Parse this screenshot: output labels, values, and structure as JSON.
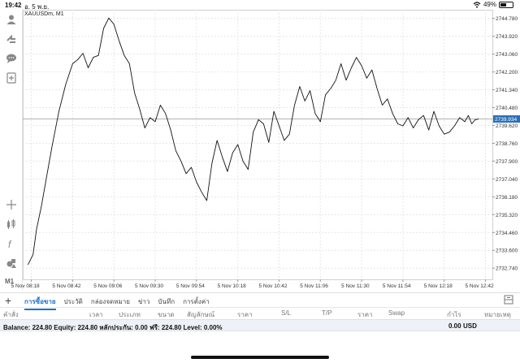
{
  "status_bar": {
    "time": "19:42",
    "date": "อ. 5 พ.ย.",
    "battery": "49%",
    "battery_level": 0.49
  },
  "chart": {
    "symbol_title": "XAUUSDm, M1",
    "timeframe": "M1",
    "current_price_label": "2739.934",
    "colors": {
      "line": "#111111",
      "grid": "#e6e6e6",
      "price_tag": "#2d6fb6"
    }
  },
  "sidebar": {
    "icons": [
      "account-icon",
      "trade-arrows-icon",
      "chat-icon",
      "new-order-icon",
      "crosshair-icon",
      "indicators-icon",
      "function-icon",
      "objects-icon"
    ]
  },
  "bottom_tabs": {
    "plus": "+",
    "items": [
      {
        "label": "การซื้อขาย",
        "active": true
      },
      {
        "label": "ประวัติ",
        "active": false
      },
      {
        "label": "กล่องจดหมาย",
        "active": false
      },
      {
        "label": "ข่าว",
        "active": false
      },
      {
        "label": "บันทึก",
        "active": false
      },
      {
        "label": "การตั้งค่า",
        "active": false
      }
    ]
  },
  "columns": [
    "คำสั่ง",
    "เวลา",
    "ประเภท",
    "ขนาด",
    "สัญลักษณ์",
    "ราคา",
    "S/L",
    "T/P",
    "ราคา",
    "Swap",
    "กำไร",
    "หมายเหตุ"
  ],
  "balance": {
    "text": "Balance: 224.80 Equity: 224.80 หลักประกัน: 0.00 ฟรี: 224.80 Level: 0.00%",
    "profit": "0.00",
    "currency": "USD"
  },
  "chart_data": {
    "type": "line",
    "title": "XAUUSDm, M1",
    "ylim": [
      2732.2,
      2745.2
    ],
    "y_ticks": [
      2744.78,
      2743.92,
      2743.06,
      2742.2,
      2741.34,
      2740.48,
      2739.62,
      2738.76,
      2737.9,
      2737.04,
      2736.18,
      2735.32,
      2734.46,
      2733.6,
      2732.74
    ],
    "y_tick_labels": [
      "2744.780",
      "2743.920",
      "2743.060",
      "2742.200",
      "2741.340",
      "2740.480",
      "2739.620",
      "2738.760",
      "2737.900",
      "2737.040",
      "2736.180",
      "2735.320",
      "2734.460",
      "2733.600",
      "2732.740"
    ],
    "x_ticks": [
      0,
      24,
      48,
      72,
      96,
      120,
      144,
      168,
      192,
      216,
      240,
      264
    ],
    "x_tick_labels": [
      "5 Nov 08:18",
      "5 Nov 08:42",
      "5 Nov 09:06",
      "5 Nov 09:30",
      "5 Nov 09:54",
      "5 Nov 10:18",
      "5 Nov 10:42",
      "5 Nov 11:06",
      "5 Nov 11:30",
      "5 Nov 11:54",
      "5 Nov 12:18",
      "5 Nov 12:42"
    ],
    "current_price": 2739.934,
    "grid": true,
    "series": [
      {
        "x": [
          -2,
          1,
          3,
          6,
          9,
          12,
          16,
          20,
          24,
          27,
          30,
          33,
          36,
          39,
          42,
          45,
          48,
          51,
          54,
          57,
          60,
          63,
          66,
          69,
          72,
          75,
          78,
          81,
          84,
          87,
          90,
          93,
          96,
          99,
          102,
          105,
          108,
          111,
          114,
          117,
          120,
          123,
          126,
          129,
          132,
          135,
          138,
          141,
          144,
          147,
          150,
          153,
          156,
          159,
          162,
          165,
          168,
          171,
          174,
          177,
          180,
          183,
          186,
          189,
          192,
          195,
          198,
          201,
          204,
          207,
          210,
          213,
          216,
          219,
          222,
          225,
          228,
          231,
          234,
          237,
          240,
          243,
          246,
          249,
          252,
          254,
          256,
          258,
          260
        ],
        "y": [
          2732.9,
          2733.4,
          2734.6,
          2735.8,
          2737.2,
          2738.6,
          2740.3,
          2741.6,
          2742.6,
          2742.8,
          2743.1,
          2742.4,
          2742.9,
          2743.0,
          2744.3,
          2744.8,
          2744.5,
          2743.7,
          2743.0,
          2742.6,
          2741.2,
          2740.4,
          2739.5,
          2740.0,
          2739.8,
          2740.6,
          2740.2,
          2739.4,
          2738.4,
          2737.9,
          2737.3,
          2737.6,
          2736.9,
          2736.4,
          2736.0,
          2737.8,
          2738.9,
          2738.1,
          2737.4,
          2738.3,
          2738.7,
          2737.9,
          2737.5,
          2739.3,
          2739.9,
          2739.7,
          2738.8,
          2740.3,
          2739.6,
          2738.9,
          2739.2,
          2740.6,
          2741.5,
          2740.8,
          2741.3,
          2740.2,
          2739.8,
          2741.1,
          2741.4,
          2741.8,
          2742.6,
          2741.8,
          2742.4,
          2742.9,
          2742.5,
          2741.9,
          2742.3,
          2741.4,
          2740.6,
          2740.9,
          2740.2,
          2739.7,
          2739.6,
          2740.0,
          2739.5,
          2739.9,
          2740.1,
          2739.4,
          2740.3,
          2739.6,
          2739.2,
          2739.3,
          2739.6,
          2740.0,
          2739.8,
          2740.1,
          2739.7,
          2739.9,
          2739.93
        ]
      }
    ]
  }
}
